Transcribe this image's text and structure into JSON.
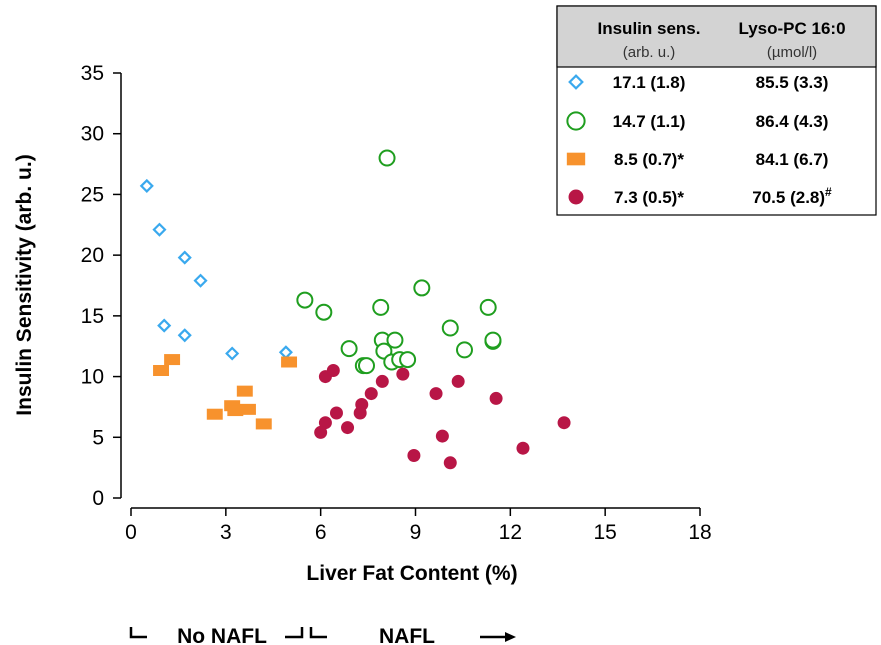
{
  "chart_data": {
    "type": "scatter",
    "xlabel": "Liver Fat Content (%)",
    "ylabel": "Insulin Sensitivity (arb. u.)",
    "xlim": [
      0,
      18
    ],
    "ylim": [
      0,
      35
    ],
    "xticks": [
      0,
      3,
      6,
      9,
      12,
      15,
      18
    ],
    "yticks": [
      0,
      5,
      10,
      15,
      20,
      25,
      30,
      35
    ],
    "grid": false,
    "legend_position": "top-right",
    "legend_table": {
      "columns": [
        {
          "title": "Insulin sens.",
          "unit": "(arb. u.)"
        },
        {
          "title": "Lyso-PC 16:0",
          "unit": "(µmol/l)"
        }
      ],
      "rows": [
        {
          "insulin": "17.1 (1.8)",
          "lysopc": "85.5 (3.3)",
          "lysopc_mark": ""
        },
        {
          "insulin": "14.7 (1.1)",
          "lysopc": "86.4 (4.3)",
          "lysopc_mark": ""
        },
        {
          "insulin": "8.5 (0.7)*",
          "lysopc": "84.1 (6.7)",
          "lysopc_mark": ""
        },
        {
          "insulin": "7.3 (0.5)*",
          "lysopc": "70.5 (2.8)",
          "lysopc_mark": "#"
        }
      ]
    },
    "regions": [
      {
        "label": "No NAFL",
        "x_start": 0,
        "x_end": 5.5
      },
      {
        "label": "NAFL",
        "x_start": 5.5
      }
    ],
    "series": [
      {
        "marker": "diamond-open",
        "color": "#3aa9ee",
        "points": [
          [
            0.5,
            25.7
          ],
          [
            0.9,
            22.1
          ],
          [
            1.7,
            19.8
          ],
          [
            2.2,
            17.9
          ],
          [
            1.05,
            14.2
          ],
          [
            1.7,
            13.4
          ],
          [
            3.2,
            11.9
          ],
          [
            4.9,
            12.0
          ]
        ]
      },
      {
        "marker": "circle-open",
        "color": "#1f9e1f",
        "points": [
          [
            8.1,
            28.0
          ],
          [
            5.5,
            16.3
          ],
          [
            6.1,
            15.3
          ],
          [
            7.9,
            15.7
          ],
          [
            9.2,
            17.3
          ],
          [
            11.3,
            15.7
          ],
          [
            10.1,
            14.0
          ],
          [
            7.95,
            13.0
          ],
          [
            8.35,
            13.0
          ],
          [
            8.0,
            12.1
          ],
          [
            6.9,
            12.3
          ],
          [
            7.35,
            10.9
          ],
          [
            7.45,
            10.9
          ],
          [
            8.25,
            11.2
          ],
          [
            8.5,
            11.4
          ],
          [
            8.75,
            11.4
          ],
          [
            10.55,
            12.2
          ],
          [
            11.45,
            12.9
          ],
          [
            11.45,
            13.0
          ]
        ]
      },
      {
        "marker": "square",
        "color": "#f7922d",
        "points": [
          [
            0.95,
            10.5
          ],
          [
            1.3,
            11.4
          ],
          [
            5.0,
            11.2
          ],
          [
            3.6,
            8.8
          ],
          [
            3.2,
            7.6
          ],
          [
            3.3,
            7.2
          ],
          [
            3.7,
            7.3
          ],
          [
            2.65,
            6.9
          ],
          [
            4.2,
            6.1
          ]
        ]
      },
      {
        "marker": "circle-filled",
        "color": "#b81646",
        "points": [
          [
            6.15,
            10.0
          ],
          [
            6.4,
            10.5
          ],
          [
            8.6,
            10.2
          ],
          [
            7.95,
            9.6
          ],
          [
            10.35,
            9.6
          ],
          [
            7.6,
            8.6
          ],
          [
            9.65,
            8.6
          ],
          [
            11.55,
            8.2
          ],
          [
            7.3,
            7.7
          ],
          [
            6.5,
            7.0
          ],
          [
            7.25,
            7.0
          ],
          [
            6.15,
            6.2
          ],
          [
            6.85,
            5.8
          ],
          [
            6.0,
            5.4
          ],
          [
            9.85,
            5.1
          ],
          [
            13.7,
            6.2
          ],
          [
            12.4,
            4.1
          ],
          [
            8.95,
            3.5
          ],
          [
            10.1,
            2.9
          ]
        ]
      }
    ]
  }
}
